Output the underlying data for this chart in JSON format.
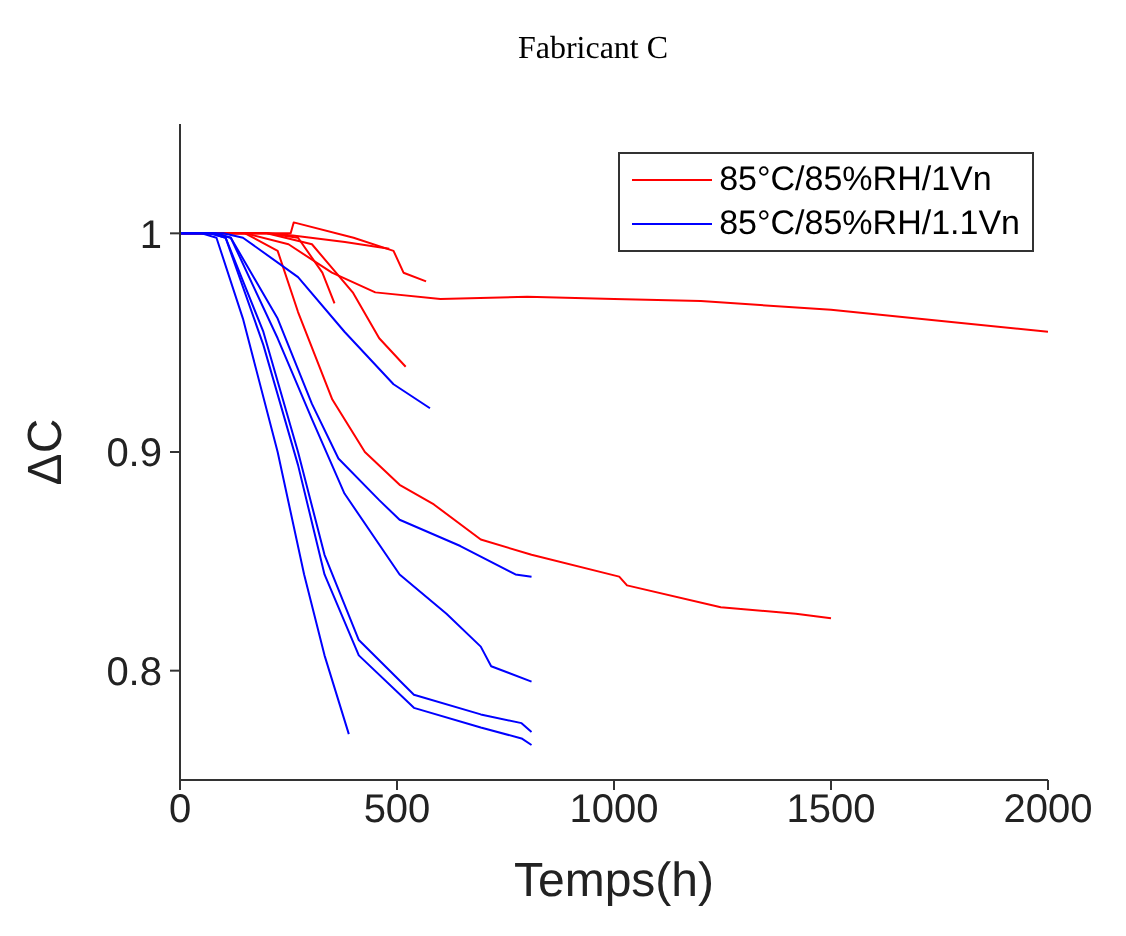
{
  "chart_data": {
    "type": "line",
    "title": "Fabricant C",
    "xlabel": "Temps(h)",
    "ylabel": "ΔC",
    "xlim": [
      0,
      2000
    ],
    "xticks": [
      0,
      500,
      1000,
      1500,
      2000
    ],
    "ylim": [
      0.75,
      1.05
    ],
    "yticks": [
      0.8,
      0.9,
      1
    ],
    "grid": false,
    "legend": "top right",
    "marker": "none",
    "line_style": "solid",
    "series": [
      {
        "name": "85°C/85%RH/1Vn",
        "color": "#ff0000",
        "x": [
          0,
          150,
          250,
          350,
          450,
          600,
          800,
          1000,
          1200,
          1500,
          1800,
          2000
        ],
        "values": [
          1,
          1,
          0.995,
          0.982,
          0.973,
          0.97,
          0.971,
          0.97,
          0.969,
          0.965,
          0.959,
          0.955
        ]
      },
      {
        "color": "#ff0000",
        "x": [
          0,
          150,
          225,
          272,
          351,
          426,
          506,
          585,
          693,
          810,
          1012,
          1030,
          1246,
          1419,
          1500
        ],
        "values": [
          1,
          1,
          0.992,
          0.964,
          0.924,
          0.9,
          0.885,
          0.876,
          0.86,
          0.853,
          0.843,
          0.839,
          0.829,
          0.826,
          0.824
        ]
      },
      {
        "color": "#ff0000",
        "x": [
          0,
          200,
          255,
          262,
          400,
          492,
          515,
          567
        ],
        "values": [
          1,
          1,
          1,
          1.005,
          0.998,
          0.992,
          0.982,
          0.978
        ]
      },
      {
        "color": "#ff0000",
        "x": [
          0,
          200,
          260,
          380,
          482
        ],
        "values": [
          1,
          1,
          0.999,
          0.996,
          0.993
        ]
      },
      {
        "color": "#ff0000",
        "x": [
          0,
          200,
          304,
          398,
          459,
          520
        ],
        "values": [
          1,
          1,
          0.995,
          0.973,
          0.952,
          0.939
        ]
      },
      {
        "color": "#ff0000",
        "x": [
          0,
          200,
          272,
          328,
          356
        ],
        "values": [
          1,
          1,
          0.998,
          0.982,
          0.968
        ]
      },
      {
        "name": "85°C/85%RH/1.1Vn",
        "color": "#0000ff",
        "x": [
          0,
          100,
          145,
          272,
          379,
          492,
          576
        ],
        "values": [
          1,
          1,
          0.998,
          0.98,
          0.955,
          0.931,
          0.92
        ]
      },
      {
        "color": "#0000ff",
        "x": [
          0,
          80,
          117,
          225,
          304,
          365,
          459,
          506,
          646,
          773,
          810
        ],
        "values": [
          1,
          1,
          0.998,
          0.961,
          0.922,
          0.897,
          0.878,
          0.869,
          0.857,
          0.844,
          0.843
        ]
      },
      {
        "color": "#0000ff",
        "x": [
          0,
          80,
          117,
          225,
          304,
          379,
          506,
          614,
          693,
          717,
          810
        ],
        "values": [
          1,
          1,
          0.998,
          0.952,
          0.915,
          0.881,
          0.844,
          0.826,
          0.811,
          0.802,
          0.795
        ]
      },
      {
        "color": "#0000ff",
        "x": [
          0,
          70,
          105,
          192,
          272,
          333,
          412,
          539,
          693,
          787,
          810
        ],
        "values": [
          1,
          1,
          0.998,
          0.955,
          0.9,
          0.853,
          0.814,
          0.789,
          0.78,
          0.776,
          0.772
        ]
      },
      {
        "color": "#0000ff",
        "x": [
          0,
          70,
          105,
          192,
          272,
          333,
          412,
          539,
          693,
          787,
          810
        ],
        "values": [
          1,
          1,
          0.998,
          0.949,
          0.894,
          0.844,
          0.807,
          0.783,
          0.774,
          0.769,
          0.766
        ]
      },
      {
        "color": "#0000ff",
        "x": [
          0,
          50,
          84,
          145,
          225,
          286,
          333,
          389
        ],
        "values": [
          1,
          1,
          0.998,
          0.961,
          0.9,
          0.844,
          0.807,
          0.771
        ]
      }
    ]
  }
}
